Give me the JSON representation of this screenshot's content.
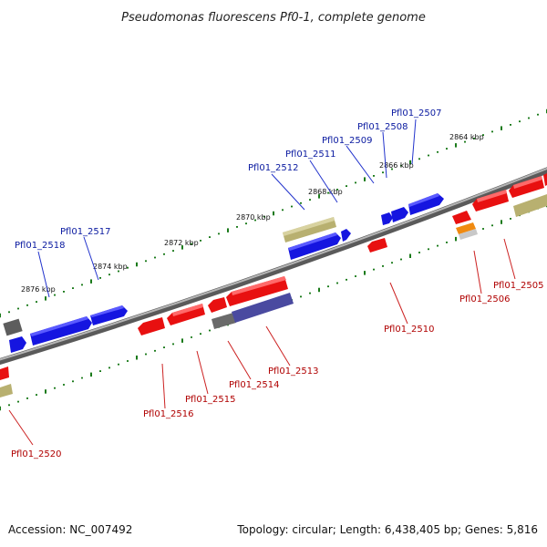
{
  "title": "Pseudomonas fluorescens Pf0-1, complete genome",
  "footer": {
    "accession": "Accession: NC_007492",
    "summary": "Topology: circular; Length: 6,438,405 bp; Genes: 5,816"
  },
  "colors": {
    "backbone": "#8a8a8a",
    "tick": "#1a7a1a",
    "blue_gene": "#1515e0",
    "red_gene": "#e81010",
    "khaki_gene": "#b8b070",
    "gray_gene": "#6a6a6a",
    "purple_gene": "#4a4aa0",
    "orange_gene": "#f08a10",
    "top_label": "#0a1aa0",
    "bottom_label": "#b00000"
  },
  "scale_labels": [
    "2876 kbp",
    "2874 kbp",
    "2872 kbp",
    "2870 kbp",
    "2868 kbp",
    "2866 kbp",
    "2864 kbp"
  ],
  "top_genes": [
    "Pfl01_2518",
    "Pfl01_2517",
    "Pfl01_2512",
    "Pfl01_2511",
    "Pfl01_2509",
    "Pfl01_2508",
    "Pfl01_2507"
  ],
  "bottom_genes": [
    "Pfl01_2520",
    "Pfl01_2516",
    "Pfl01_2515",
    "Pfl01_2514",
    "Pfl01_2513",
    "Pfl01_2510",
    "Pfl01_2506",
    "Pfl01_2505"
  ]
}
